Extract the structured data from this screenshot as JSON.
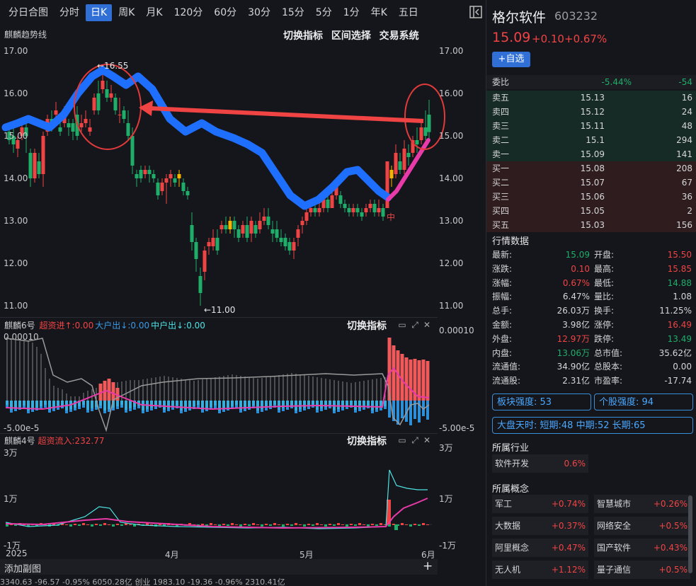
{
  "toolbar": {
    "items": [
      "分日合图",
      "分时",
      "日K",
      "周K",
      "月K",
      "120分",
      "60分",
      "30分",
      "15分",
      "5分",
      "1分",
      "年K",
      "五日"
    ],
    "active_index": 2
  },
  "main_chart": {
    "title": "麒麟趋势线",
    "options": [
      "切换指标",
      "区间选择",
      "交易系统"
    ],
    "y_ticks": [
      "17.00",
      "16.00",
      "15.00",
      "14.00",
      "13.00",
      "12.00",
      "11.00"
    ],
    "high_label": "←16.55",
    "low_label": "←11.00",
    "marker_label": "中",
    "up_color": "#f04444",
    "down_color": "#1fae6a",
    "trend_down_color": "#1f6fff",
    "trend_up_color": "#e83aa8",
    "arrow_color": "#f04444"
  },
  "sub1": {
    "title": "麒麟6号",
    "series_labels": [
      {
        "text": "超资进↑:0.00",
        "color": "#f04444"
      },
      {
        "text": "大户出↓:0.00",
        "color": "#3b9ae6"
      },
      {
        "text": "中户出↓:0.00",
        "color": "#4de3e3"
      }
    ],
    "option": "切换指标",
    "top_left": "0.00010",
    "bottom_left": "-5.00e-5",
    "top_right": "0.00010",
    "bottom_right": "-5.00e-5"
  },
  "sub2": {
    "title": "麒麟4号",
    "series_label": {
      "text": "超资流入:232.77",
      "color": "#f04444"
    },
    "option": "切换指标",
    "top_left": "3万",
    "mid_left": "1万",
    "bottom_left": "-1万",
    "top_right": "3万",
    "mid_right": "1万",
    "bottom_right": "-1万"
  },
  "x_axis": [
    "2025",
    "4月",
    "5月",
    "6月"
  ],
  "add_subchart": "添加副图",
  "status_bar": "3340.63 -96.57 -0.95% 6050.28亿 创业 1983.10 -19.36 -0.96% 2310.41亿",
  "stock": {
    "name": "格尔软件",
    "code": "603232",
    "price": "15.09",
    "change": "+0.10",
    "pct": "+0.67%",
    "fav_label": "+自选"
  },
  "orderbook": {
    "weibi": {
      "label": "委比",
      "pct": "-5.44%",
      "val": "-54"
    },
    "rows": [
      {
        "label": "卖五",
        "price": "15.13",
        "vol": "16"
      },
      {
        "label": "卖四",
        "price": "15.12",
        "vol": "24"
      },
      {
        "label": "卖三",
        "price": "15.11",
        "vol": "48"
      },
      {
        "label": "卖二",
        "price": "15.1",
        "vol": "294"
      },
      {
        "label": "卖一",
        "price": "15.09",
        "vol": "141"
      },
      {
        "label": "买一",
        "price": "15.08",
        "vol": "208"
      },
      {
        "label": "买二",
        "price": "15.07",
        "vol": "67"
      },
      {
        "label": "买三",
        "price": "15.06",
        "vol": "36"
      },
      {
        "label": "买四",
        "price": "15.05",
        "vol": "2"
      },
      {
        "label": "买五",
        "price": "15.03",
        "vol": "156"
      }
    ]
  },
  "market": {
    "title": "行情数据",
    "rows": [
      [
        {
          "k": "最新:",
          "v": "15.09",
          "c": "#1fae6a"
        },
        {
          "k": "开盘:",
          "v": "15.50",
          "c": "#f04444"
        }
      ],
      [
        {
          "k": "涨跌:",
          "v": "0.10",
          "c": "#f04444"
        },
        {
          "k": "最高:",
          "v": "15.85",
          "c": "#f04444"
        }
      ],
      [
        {
          "k": "涨幅:",
          "v": "0.67%",
          "c": "#f04444"
        },
        {
          "k": "最低:",
          "v": "14.88",
          "c": "#1fae6a"
        }
      ],
      [
        {
          "k": "振幅:",
          "v": "6.47%",
          "c": "#d6d6d8"
        },
        {
          "k": "量比:",
          "v": "1.08",
          "c": "#d6d6d8"
        }
      ],
      [
        {
          "k": "总手:",
          "v": "26.03万",
          "c": "#d6d6d8"
        },
        {
          "k": "换手:",
          "v": "11.25%",
          "c": "#d6d6d8"
        }
      ],
      [
        {
          "k": "金额:",
          "v": "3.98亿",
          "c": "#d6d6d8"
        },
        {
          "k": "涨停:",
          "v": "16.49",
          "c": "#f04444"
        }
      ],
      [
        {
          "k": "外盘:",
          "v": "12.97万",
          "c": "#f04444"
        },
        {
          "k": "跌停:",
          "v": "13.49",
          "c": "#1fae6a"
        }
      ],
      [
        {
          "k": "内盘:",
          "v": "13.06万",
          "c": "#1fae6a"
        },
        {
          "k": "总市值:",
          "v": "35.62亿",
          "c": "#d6d6d8"
        }
      ],
      [
        {
          "k": "流通值:",
          "v": "34.90亿",
          "c": "#d6d6d8"
        },
        {
          "k": "总股本:",
          "v": "0.00",
          "c": "#d6d6d8"
        }
      ],
      [
        {
          "k": "流通股:",
          "v": "2.31亿",
          "c": "#d6d6d8"
        },
        {
          "k": "市盈率:",
          "v": "-17.74",
          "c": "#d6d6d8"
        }
      ]
    ]
  },
  "strength": {
    "sector": "板块强度:  53",
    "stock": "个股强度:  94",
    "market": "大盘天时:  短期:48 中期:52 长期:65"
  },
  "industry": {
    "title": "所属行业",
    "items": [
      {
        "name": "软件开发",
        "pct": "0.6%"
      }
    ]
  },
  "concepts": {
    "title": "所属概念",
    "items": [
      {
        "name": "军工",
        "pct": "+0.74%"
      },
      {
        "name": "智慧城市",
        "pct": "+0.26%"
      },
      {
        "name": "大数据",
        "pct": "+0.37%"
      },
      {
        "name": "网络安全",
        "pct": "+0.5%"
      },
      {
        "name": "阿里概念",
        "pct": "+0.47%"
      },
      {
        "name": "国产软件",
        "pct": "+0.43%"
      },
      {
        "name": "无人机",
        "pct": "+1.12%"
      },
      {
        "name": "量子通信",
        "pct": "+0.5%"
      }
    ]
  }
}
